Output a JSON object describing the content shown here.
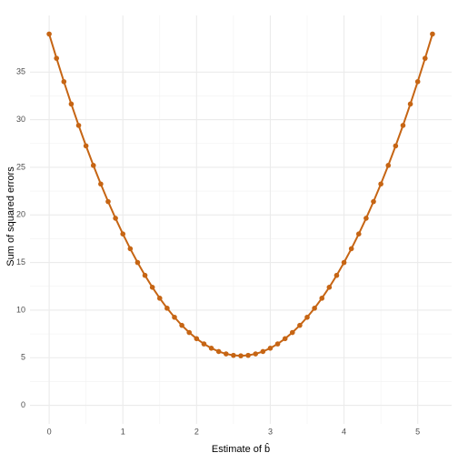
{
  "chart_data": {
    "type": "line",
    "xlabel": "Estimate of b̂",
    "ylabel": "Sum of squared errors",
    "x": [
      0,
      0.1,
      0.2,
      0.3,
      0.4,
      0.5,
      0.6,
      0.7,
      0.8,
      0.9,
      1,
      1.1,
      1.2,
      1.3,
      1.4,
      1.5,
      1.6,
      1.7,
      1.8,
      1.9,
      2,
      2.1,
      2.2,
      2.3,
      2.4,
      2.5,
      2.6,
      2.7,
      2.8,
      2.9,
      3,
      3.1,
      3.2,
      3.3,
      3.4,
      3.5,
      3.6,
      3.7,
      3.8,
      3.9,
      4,
      4.1,
      4.2,
      4.3,
      4.4,
      4.5,
      4.6,
      4.7,
      4.8,
      4.9,
      5,
      5.1,
      5.2
    ],
    "values": [
      39,
      36.45,
      34,
      31.65,
      29.4,
      27.25,
      25.2,
      23.25,
      21.4,
      19.65,
      18,
      16.45,
      15,
      13.65,
      12.4,
      11.25,
      10.2,
      9.25,
      8.4,
      7.65,
      7,
      6.45,
      6,
      5.65,
      5.4,
      5.25,
      5.2,
      5.25,
      5.4,
      5.65,
      6,
      6.45,
      7,
      7.65,
      8.4,
      9.25,
      10.2,
      11.25,
      12.4,
      13.65,
      15,
      16.45,
      18,
      19.65,
      21.4,
      23.25,
      25.2,
      27.25,
      29.4,
      31.65,
      34,
      36.45,
      39
    ],
    "color": "#c66514",
    "xlim": [
      -0.26,
      5.46
    ],
    "ylim": [
      -1.95,
      40.95
    ],
    "xticks": [
      0,
      1,
      2,
      3,
      4,
      5
    ],
    "yticks": [
      0,
      5,
      10,
      15,
      20,
      25,
      30,
      35
    ],
    "grid": true,
    "markers": true
  }
}
